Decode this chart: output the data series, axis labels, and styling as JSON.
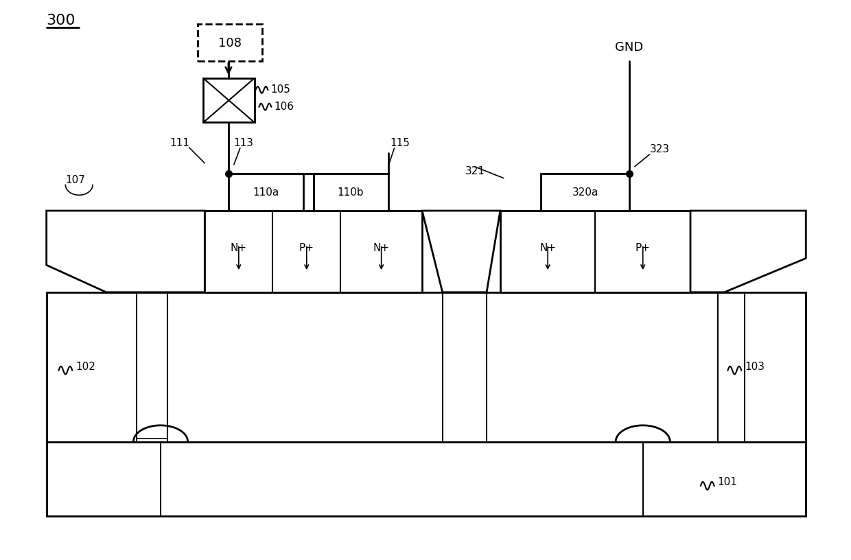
{
  "bg_color": "#ffffff",
  "fig_width": 12.4,
  "fig_height": 8.16,
  "dpi": 100,
  "label_300": "300",
  "label_101": "101",
  "label_102": "102",
  "label_103": "103",
  "label_105": "105",
  "label_106": "106",
  "label_107": "107",
  "label_108": "108",
  "label_111": "111",
  "label_113": "113",
  "label_115": "115",
  "label_110a": "110a",
  "label_110b": "110b",
  "label_321": "321",
  "label_323": "323",
  "label_320a": "320a",
  "label_GND": "GND",
  "label_Nplus1": "N+",
  "label_Pplus1": "P+",
  "label_Nplus2": "N+",
  "label_Nplus3": "N+",
  "label_Pplus2": "P+"
}
